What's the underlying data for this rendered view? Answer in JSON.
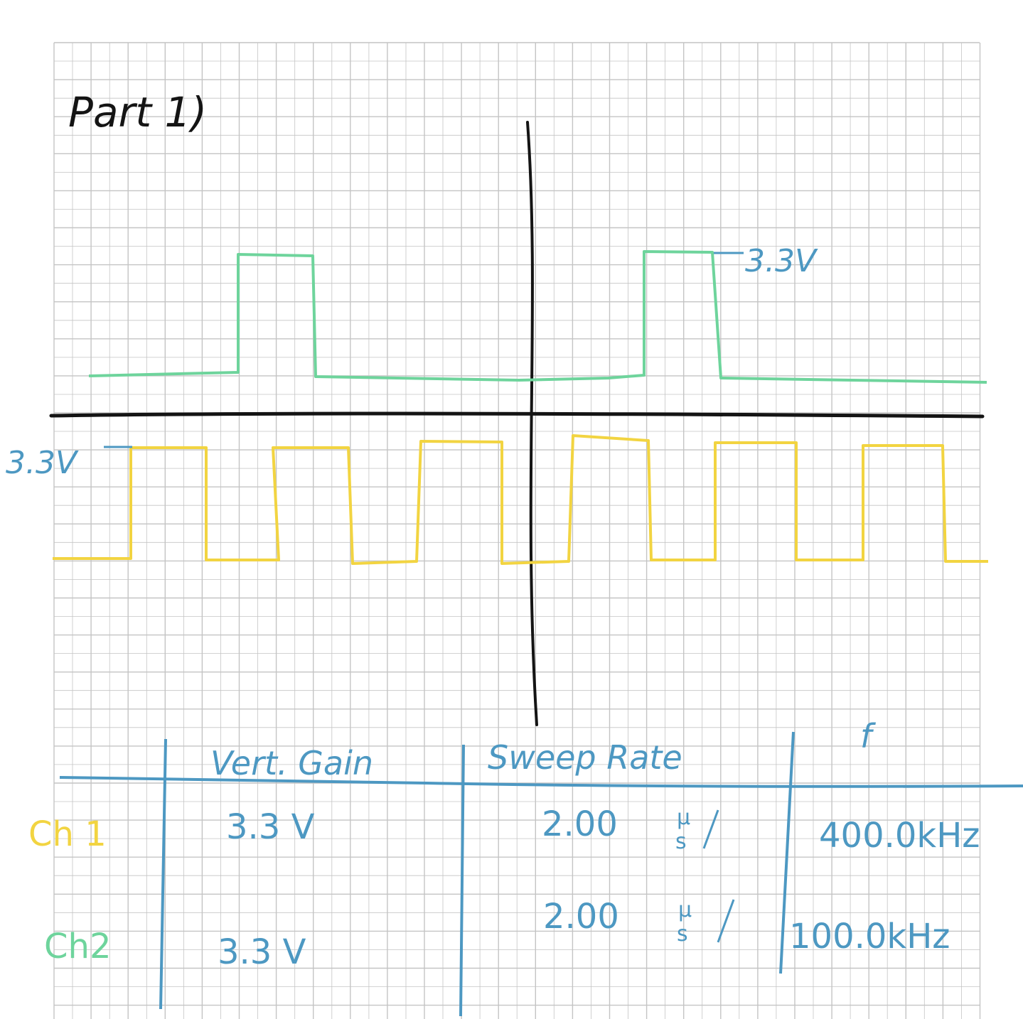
{
  "title": "Part 1)",
  "colors": {
    "paper": "#ffffff",
    "grid": "#c4c4c4",
    "axis": "#141414",
    "ch1": "#f2d441",
    "ch2": "#6ed49c",
    "ink_blue": "#4d98c2",
    "ink_black": "#141414"
  },
  "waveform_annotations": {
    "ch2_level": "3.3V",
    "ch1_level": "3.3V"
  },
  "table": {
    "headers": [
      "Vert. Gain",
      "Sweep Rate",
      "f"
    ],
    "rows": [
      {
        "label": "Ch 1",
        "color": "#f2d441",
        "vert_gain": "3.3 V",
        "sweep_value": "2.00",
        "sweep_unit_top": "µ",
        "sweep_unit_bottom": "s",
        "frequency": "400.0kHz"
      },
      {
        "label": "Ch2",
        "color": "#6ed49c",
        "vert_gain": "3.3 V",
        "sweep_value": "2.00",
        "sweep_unit_top": "µ",
        "sweep_unit_bottom": "s",
        "frequency": "100.0kHz"
      }
    ]
  }
}
